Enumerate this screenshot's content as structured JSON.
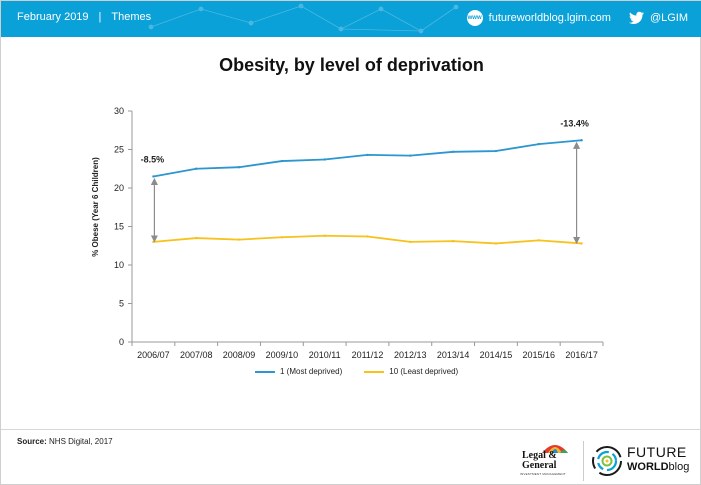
{
  "header": {
    "date": "February 2019",
    "separator": "|",
    "section": "Themes",
    "blog_url": "futureworldblog.lgim.com",
    "web_badge": "www",
    "twitter_handle": "@LGIM"
  },
  "chart_data": {
    "type": "line",
    "title": "Obesity, by level of deprivation",
    "xlabel": "",
    "ylabel": "% Obese (Year 6 Children)",
    "categories": [
      "2006/07",
      "2007/08",
      "2008/09",
      "2009/10",
      "2010/11",
      "2011/12",
      "2012/13",
      "2013/14",
      "2014/15",
      "2015/16",
      "2016/17"
    ],
    "ylim": [
      0,
      30
    ],
    "yticks": [
      0,
      5,
      10,
      15,
      20,
      25,
      30
    ],
    "grid": false,
    "legend_position": "bottom",
    "series": [
      {
        "name": "1  (Most deprived)",
        "color": "#2b96cf",
        "values": [
          21.5,
          22.5,
          22.7,
          23.5,
          23.7,
          24.3,
          24.2,
          24.7,
          24.8,
          25.7,
          26.2
        ]
      },
      {
        "name": "10 (Least deprived)",
        "color": "#f7c21b",
        "values": [
          13.0,
          13.5,
          13.3,
          13.6,
          13.8,
          13.7,
          13.0,
          13.1,
          12.8,
          13.2,
          12.8
        ]
      }
    ],
    "annotations": [
      {
        "text": "-8.5%",
        "category": "2006/07"
      },
      {
        "text": "-13.4%",
        "category": "2016/17"
      }
    ]
  },
  "footer": {
    "source_label": "Source:",
    "source_text": " NHS Digital, 2017",
    "lg_line1": "Legal &",
    "lg_line2": "General",
    "lg_sub": "INVESTMENT MANAGEMENT",
    "fw_line1": "FUTURE",
    "fw_line2a": "WORLD",
    "fw_line2b": "blog"
  },
  "colors": {
    "header_bg": "#0aa0d8",
    "axis": "#999999",
    "arrow": "#8c8c8c"
  }
}
